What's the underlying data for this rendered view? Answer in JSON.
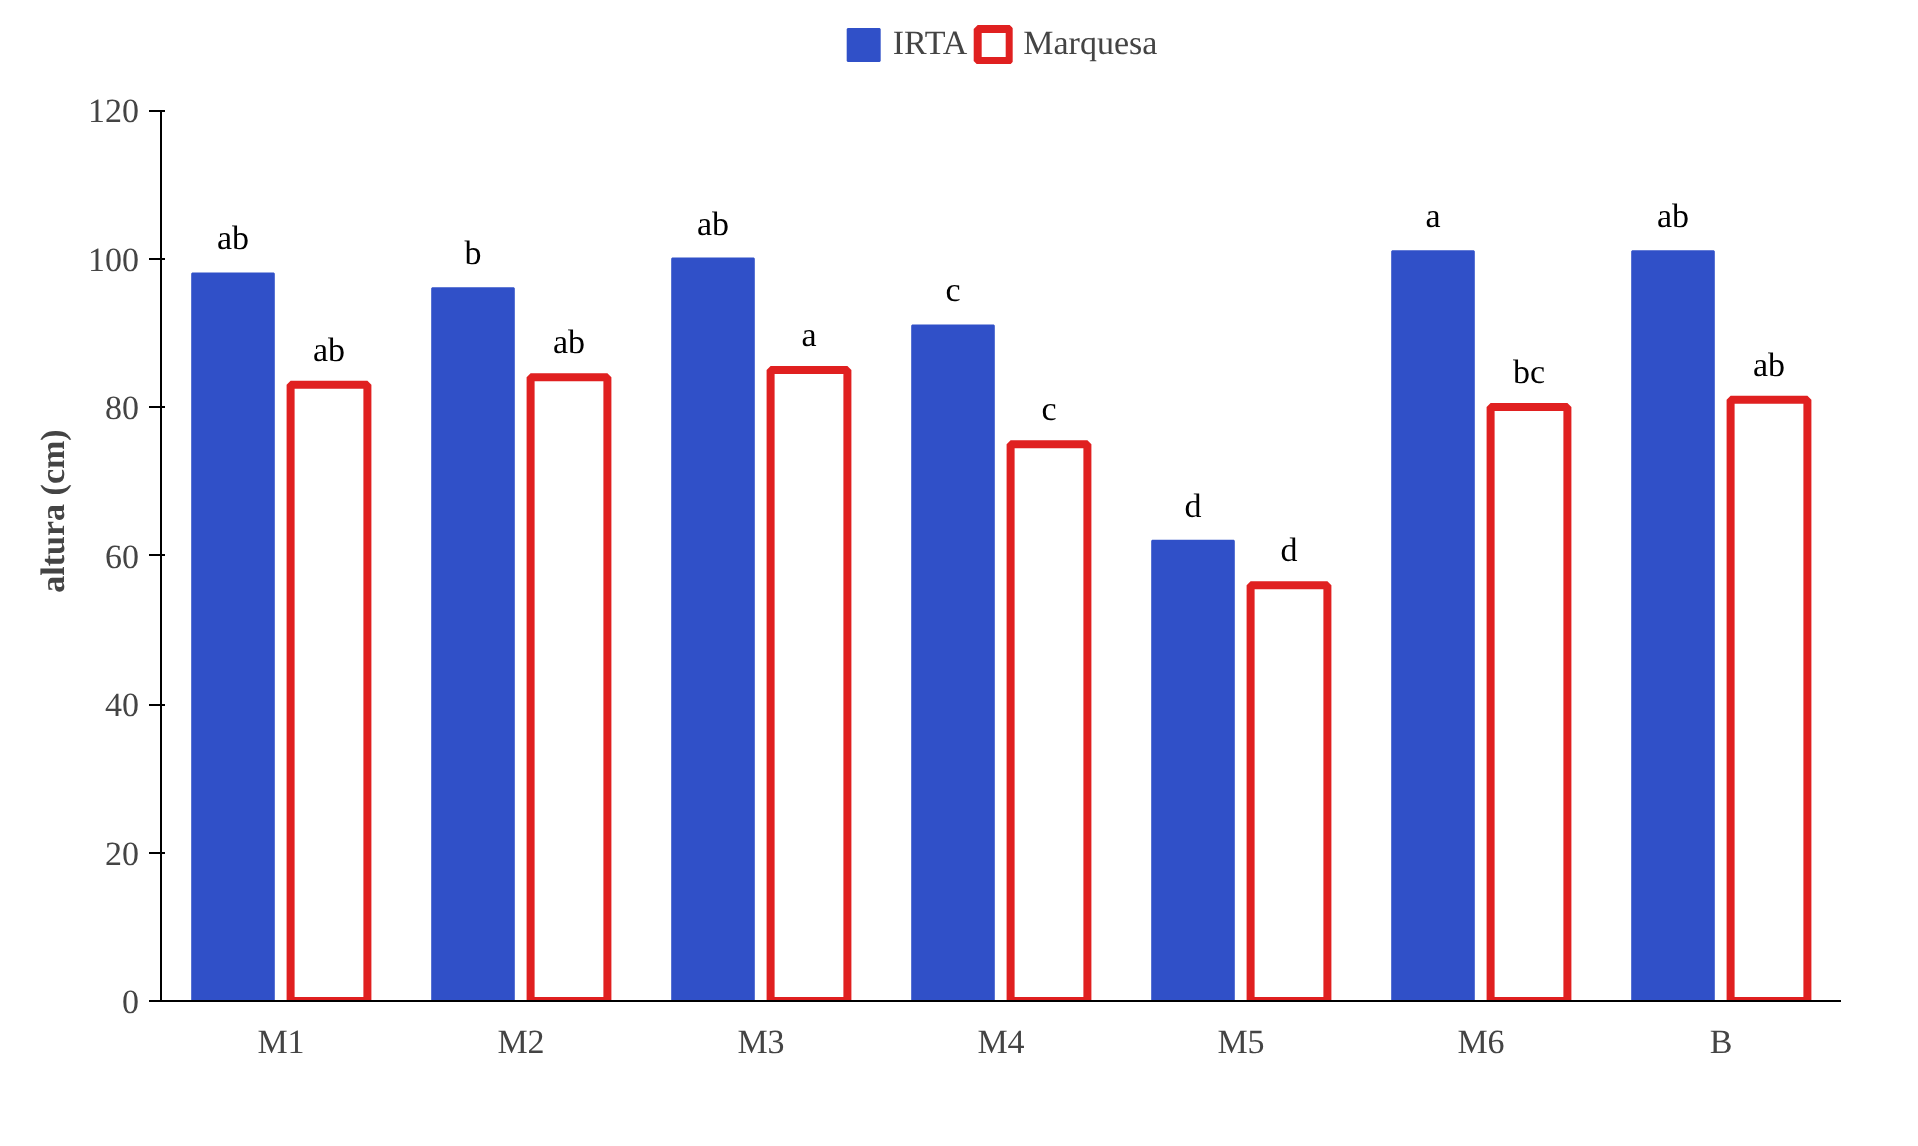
{
  "chart_data": {
    "type": "bar",
    "ylabel": "altura (cm)",
    "categories": [
      "M1",
      "M2",
      "M3",
      "M4",
      "M5",
      "M6",
      "B"
    ],
    "ylim": [
      0,
      120
    ],
    "yticks": [
      0,
      20,
      40,
      60,
      80,
      100,
      120
    ],
    "legend": "top",
    "grid": false,
    "series": [
      {
        "name": "IRTA",
        "color": "#3050c8",
        "values": [
          98,
          96,
          100,
          91,
          62,
          101,
          101
        ],
        "value_labels": [
          "ab",
          "b",
          "ab",
          "c",
          "d",
          "a",
          "ab"
        ]
      },
      {
        "name": "Marquesa",
        "color": "#e02020",
        "values": [
          83,
          84,
          85,
          75,
          56,
          80,
          81
        ],
        "value_labels": [
          "ab",
          "ab",
          "a",
          "c",
          "d",
          "bc",
          "ab"
        ]
      }
    ]
  }
}
